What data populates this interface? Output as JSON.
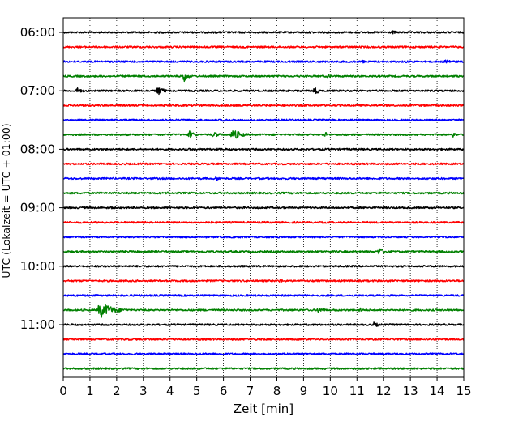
{
  "chart_data": {
    "type": "line",
    "title": "",
    "xlabel": "Zeit  [min]",
    "ylabel": "UTC (Lokalzeit = UTC + 01:00)",
    "xlim": [
      0,
      15
    ],
    "x_ticks": [
      0,
      1,
      2,
      3,
      4,
      5,
      6,
      7,
      8,
      9,
      10,
      11,
      12,
      13,
      14,
      15
    ],
    "x_tick_labels": [
      "0",
      "1",
      "2",
      "3",
      "4",
      "5",
      "6",
      "7",
      "8",
      "9",
      "10",
      "11",
      "12",
      "13",
      "14",
      "15"
    ],
    "y_tick_labels": [
      "06:00",
      "07:00",
      "08:00",
      "09:00",
      "10:00",
      "11:00"
    ],
    "y_tick_rows": [
      0,
      4,
      8,
      12,
      16,
      20
    ],
    "grid": "vertical dotted",
    "colors": [
      "#000000",
      "#ff0000",
      "#0000ff",
      "#008000"
    ],
    "series": [
      {
        "start": "06:00",
        "color": "#000000",
        "events": [
          {
            "t": 12.3,
            "amp": 0.35,
            "dur": 0.7
          }
        ]
      },
      {
        "start": "06:15",
        "color": "#ff0000",
        "events": []
      },
      {
        "start": "06:30",
        "color": "#0000ff",
        "events": [
          {
            "t": 11.2,
            "amp": 0.35,
            "dur": 0.5
          },
          {
            "t": 12.8,
            "amp": 0.3,
            "dur": 0.5
          },
          {
            "t": 14.3,
            "amp": 0.5,
            "dur": 0.8
          }
        ]
      },
      {
        "start": "06:45",
        "color": "#008000",
        "events": [
          {
            "t": 4.5,
            "amp": 1.3,
            "dur": 0.4
          },
          {
            "t": 9.9,
            "amp": 0.4,
            "dur": 0.6
          }
        ]
      },
      {
        "start": "07:00",
        "color": "#000000",
        "events": [
          {
            "t": 0.5,
            "amp": 0.6,
            "dur": 0.6
          },
          {
            "t": 3.5,
            "amp": 0.9,
            "dur": 0.7
          },
          {
            "t": 9.4,
            "amp": 1.0,
            "dur": 0.4
          }
        ]
      },
      {
        "start": "07:15",
        "color": "#ff0000",
        "events": []
      },
      {
        "start": "07:30",
        "color": "#0000ff",
        "events": [
          {
            "t": 6.0,
            "amp": 0.3,
            "dur": 0.4
          }
        ]
      },
      {
        "start": "07:45",
        "color": "#008000",
        "events": [
          {
            "t": 4.7,
            "amp": 0.8,
            "dur": 0.6
          },
          {
            "t": 5.6,
            "amp": 0.7,
            "dur": 0.6
          },
          {
            "t": 6.3,
            "amp": 1.0,
            "dur": 1.0
          },
          {
            "t": 9.8,
            "amp": 0.5,
            "dur": 0.5
          },
          {
            "t": 14.6,
            "amp": 0.5,
            "dur": 0.4
          }
        ]
      },
      {
        "start": "08:00",
        "color": "#000000",
        "events": []
      },
      {
        "start": "08:15",
        "color": "#ff0000",
        "events": []
      },
      {
        "start": "08:30",
        "color": "#0000ff",
        "events": [
          {
            "t": 5.7,
            "amp": 0.5,
            "dur": 0.6
          }
        ]
      },
      {
        "start": "08:45",
        "color": "#008000",
        "events": [
          {
            "t": 3.9,
            "amp": 0.3,
            "dur": 0.5
          }
        ]
      },
      {
        "start": "09:00",
        "color": "#000000",
        "events": [
          {
            "t": 1.8,
            "amp": 0.3,
            "dur": 0.3
          },
          {
            "t": 7.3,
            "amp": 0.3,
            "dur": 0.4
          }
        ]
      },
      {
        "start": "09:15",
        "color": "#ff0000",
        "events": []
      },
      {
        "start": "09:30",
        "color": "#0000ff",
        "events": []
      },
      {
        "start": "09:45",
        "color": "#008000",
        "events": [
          {
            "t": 11.8,
            "amp": 0.7,
            "dur": 0.8
          }
        ]
      },
      {
        "start": "10:00",
        "color": "#000000",
        "events": [
          {
            "t": 5.8,
            "amp": 0.2,
            "dur": 0.4
          }
        ]
      },
      {
        "start": "10:15",
        "color": "#ff0000",
        "events": [
          {
            "t": 8.1,
            "amp": 0.35,
            "dur": 0.5
          }
        ]
      },
      {
        "start": "10:30",
        "color": "#0000ff",
        "events": []
      },
      {
        "start": "10:45",
        "color": "#008000",
        "events": [
          {
            "t": 1.3,
            "amp": 1.5,
            "dur": 1.4
          },
          {
            "t": 9.5,
            "amp": 0.5,
            "dur": 0.8
          },
          {
            "t": 11.1,
            "amp": 0.5,
            "dur": 0.4
          }
        ]
      },
      {
        "start": "11:00",
        "color": "#000000",
        "events": [
          {
            "t": 11.6,
            "amp": 0.5,
            "dur": 0.7
          }
        ]
      },
      {
        "start": "11:15",
        "color": "#ff0000",
        "events": []
      },
      {
        "start": "11:30",
        "color": "#0000ff",
        "events": []
      },
      {
        "start": "11:45",
        "color": "#008000",
        "events": []
      }
    ]
  }
}
